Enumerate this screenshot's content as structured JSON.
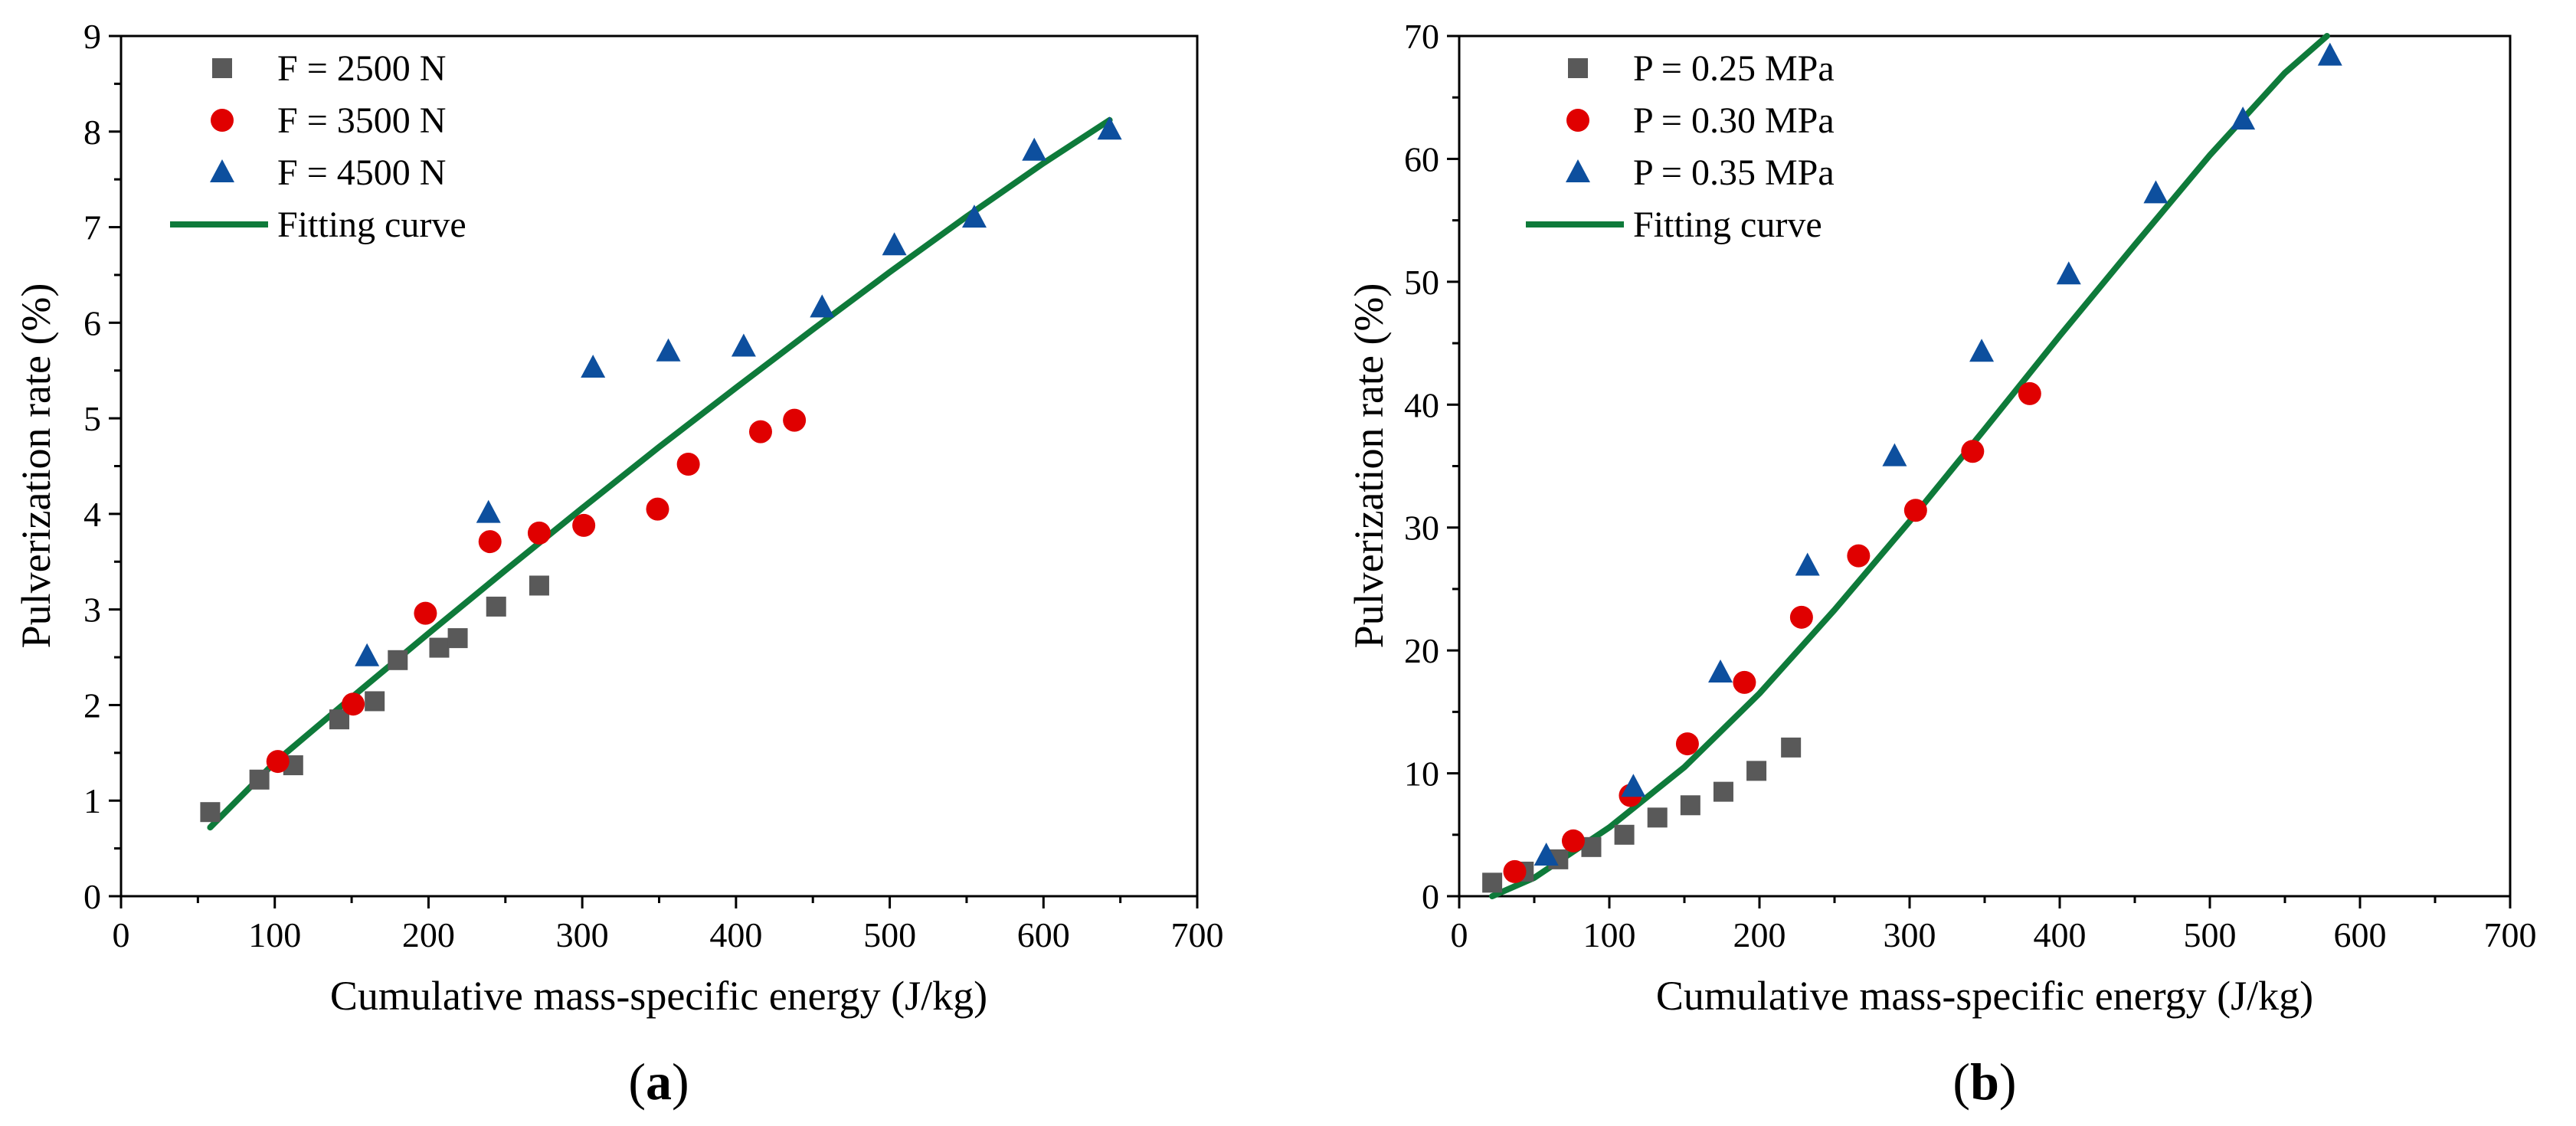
{
  "chart_data": [
    {
      "type": "scatter",
      "panel_label": "(a)",
      "panel_open": "(",
      "panel_letter": "a",
      "panel_close": ")",
      "xlabel": "Cumulative mass-specific energy (J/kg)",
      "ylabel": "Pulverization rate (%)",
      "xlim": [
        0,
        700
      ],
      "ylim": [
        0,
        9
      ],
      "xticks": [
        0,
        100,
        200,
        300,
        400,
        500,
        600,
        700
      ],
      "yticks": [
        0,
        1,
        2,
        3,
        4,
        5,
        6,
        7,
        8,
        9
      ],
      "legend_position": "top-left",
      "series": [
        {
          "name": "F = 2500 N",
          "marker": "square",
          "color": "#595959",
          "x": [
            58,
            90,
            112,
            142,
            165,
            180,
            207,
            219,
            244,
            272
          ],
          "y": [
            0.88,
            1.22,
            1.37,
            1.85,
            2.04,
            2.47,
            2.6,
            2.7,
            3.03,
            3.25
          ]
        },
        {
          "name": "F = 3500 N",
          "marker": "circle",
          "color": "#e00000",
          "x": [
            102,
            151,
            198,
            240,
            272,
            301,
            349,
            369,
            416,
            438
          ],
          "y": [
            1.41,
            2.01,
            2.96,
            3.71,
            3.8,
            3.88,
            4.05,
            4.52,
            4.86,
            4.98
          ]
        },
        {
          "name": "F = 4500 N",
          "marker": "triangle",
          "color": "#0d4f9e",
          "x": [
            160,
            239,
            307,
            356,
            405,
            456,
            503,
            555,
            594,
            643
          ],
          "y": [
            2.51,
            4.01,
            5.53,
            5.7,
            5.75,
            6.16,
            6.81,
            7.1,
            7.8,
            8.02
          ]
        }
      ],
      "fit": {
        "name": "Fitting curve",
        "color": "#0e7a3a",
        "x": [
          58,
          100,
          150,
          200,
          250,
          300,
          350,
          400,
          450,
          500,
          550,
          600,
          643
        ],
        "y": [
          0.72,
          1.4,
          2.08,
          2.75,
          3.41,
          4.06,
          4.7,
          5.32,
          5.93,
          6.53,
          7.11,
          7.67,
          8.12
        ]
      }
    },
    {
      "type": "scatter",
      "panel_label": "(b)",
      "panel_open": "(",
      "panel_letter": "b",
      "panel_close": ")",
      "xlabel": "Cumulative mass-specific energy (J/kg)",
      "ylabel": "Pulverization rate (%)",
      "xlim": [
        0,
        700
      ],
      "ylim": [
        0,
        70
      ],
      "xticks": [
        0,
        100,
        200,
        300,
        400,
        500,
        600,
        700
      ],
      "yticks": [
        0,
        10,
        20,
        30,
        40,
        50,
        60,
        70
      ],
      "legend_position": "top-left",
      "series": [
        {
          "name": "P = 0.25 MPa",
          "marker": "square",
          "color": "#595959",
          "x": [
            22,
            43,
            66,
            88,
            110,
            132,
            154,
            176,
            198,
            221
          ],
          "y": [
            1.1,
            2.0,
            3.0,
            4.0,
            5.0,
            6.4,
            7.4,
            8.5,
            10.2,
            12.1
          ]
        },
        {
          "name": "P = 0.30 MPa",
          "marker": "circle",
          "color": "#e00000",
          "x": [
            37,
            76,
            114,
            152,
            190,
            228,
            266,
            304,
            342,
            380
          ],
          "y": [
            2.0,
            4.5,
            8.2,
            12.4,
            17.4,
            22.7,
            27.7,
            31.4,
            36.2,
            40.9
          ]
        },
        {
          "name": "P = 0.35 MPa",
          "marker": "triangle",
          "color": "#0d4f9e",
          "x": [
            58,
            116,
            174,
            232,
            290,
            348,
            406,
            464,
            522,
            580
          ],
          "y": [
            3.3,
            8.9,
            18.2,
            26.9,
            35.8,
            44.3,
            50.6,
            57.2,
            63.2,
            68.4
          ]
        }
      ],
      "fit": {
        "name": "Fitting curve",
        "color": "#0e7a3a",
        "x": [
          22,
          50,
          100,
          150,
          200,
          250,
          300,
          350,
          400,
          450,
          500,
          550,
          578
        ],
        "y": [
          0.0,
          1.5,
          5.6,
          10.5,
          16.5,
          23.3,
          30.5,
          38.0,
          45.6,
          53.0,
          60.3,
          67.0,
          70.0
        ]
      }
    }
  ]
}
